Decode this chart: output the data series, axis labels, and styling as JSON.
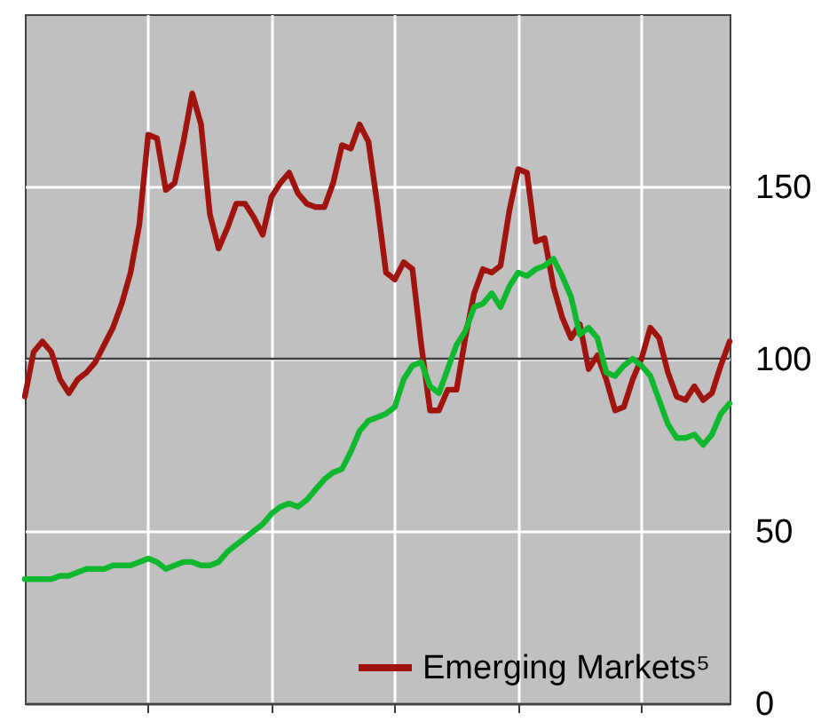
{
  "chart_data": {
    "type": "line",
    "ylim": [
      0,
      200
    ],
    "yticks": [
      0,
      50,
      100,
      150
    ],
    "tick_labels": "y",
    "grid": true,
    "legend": "bottom right",
    "line_style": "solid",
    "categories": [
      null,
      null,
      null,
      null,
      null,
      null,
      null,
      null,
      null,
      null,
      null,
      null,
      null,
      null,
      null,
      null,
      null,
      null,
      null,
      null,
      null,
      null,
      null,
      null,
      null,
      null,
      null,
      null,
      null,
      null,
      null,
      null,
      null,
      null,
      null,
      null,
      null,
      null,
      null,
      null,
      null,
      null,
      null,
      null,
      null,
      null,
      null,
      null,
      null,
      null,
      null,
      null,
      null,
      null,
      null,
      null,
      null,
      null,
      null,
      null,
      null,
      null,
      null,
      null,
      null,
      null,
      null,
      null,
      null,
      null,
      null,
      null,
      null,
      null,
      null,
      null,
      null,
      null,
      null,
      null,
      null
    ],
    "ref_lines": [
      {
        "axis": "y",
        "value": 100,
        "color": "#404040"
      }
    ],
    "series": [
      {
        "name": "Emerging Markets⁵",
        "color": "#a01410",
        "values": [
          89,
          102,
          105,
          102,
          94,
          90,
          94,
          96,
          99,
          104,
          109,
          116,
          125,
          139,
          165,
          164,
          149,
          151,
          163,
          177,
          168,
          142,
          132,
          138,
          145,
          145,
          141,
          136,
          147,
          151,
          154,
          148,
          145,
          144,
          144,
          151,
          162,
          161,
          168,
          163,
          145,
          125,
          123,
          128,
          126,
          104,
          85,
          85,
          91,
          91,
          106,
          119,
          126,
          125,
          127,
          143,
          155,
          154,
          134,
          135,
          121,
          112,
          106,
          110,
          97,
          101,
          94,
          85,
          86,
          94,
          100,
          109,
          106,
          96,
          89,
          88,
          92,
          88,
          90,
          98,
          105
        ]
      },
      {
        "name": null,
        "color": "#10b830",
        "values": [
          36,
          36,
          36,
          36,
          37,
          37,
          38,
          39,
          39,
          39,
          40,
          40,
          40,
          41,
          42,
          41,
          39,
          40,
          41,
          41,
          40,
          40,
          41,
          44,
          46,
          48,
          50,
          52,
          55,
          57,
          58,
          57,
          59,
          62,
          65,
          67,
          68,
          73,
          79,
          82,
          83,
          84,
          86,
          94,
          98,
          99,
          92,
          90,
          97,
          104,
          108,
          115,
          116,
          119,
          115,
          121,
          125,
          124,
          126,
          127,
          129,
          124,
          118,
          107,
          109,
          106,
          96,
          95,
          98,
          100,
          98,
          95,
          88,
          81,
          77,
          77,
          78,
          75,
          78,
          84,
          87
        ]
      }
    ]
  }
}
